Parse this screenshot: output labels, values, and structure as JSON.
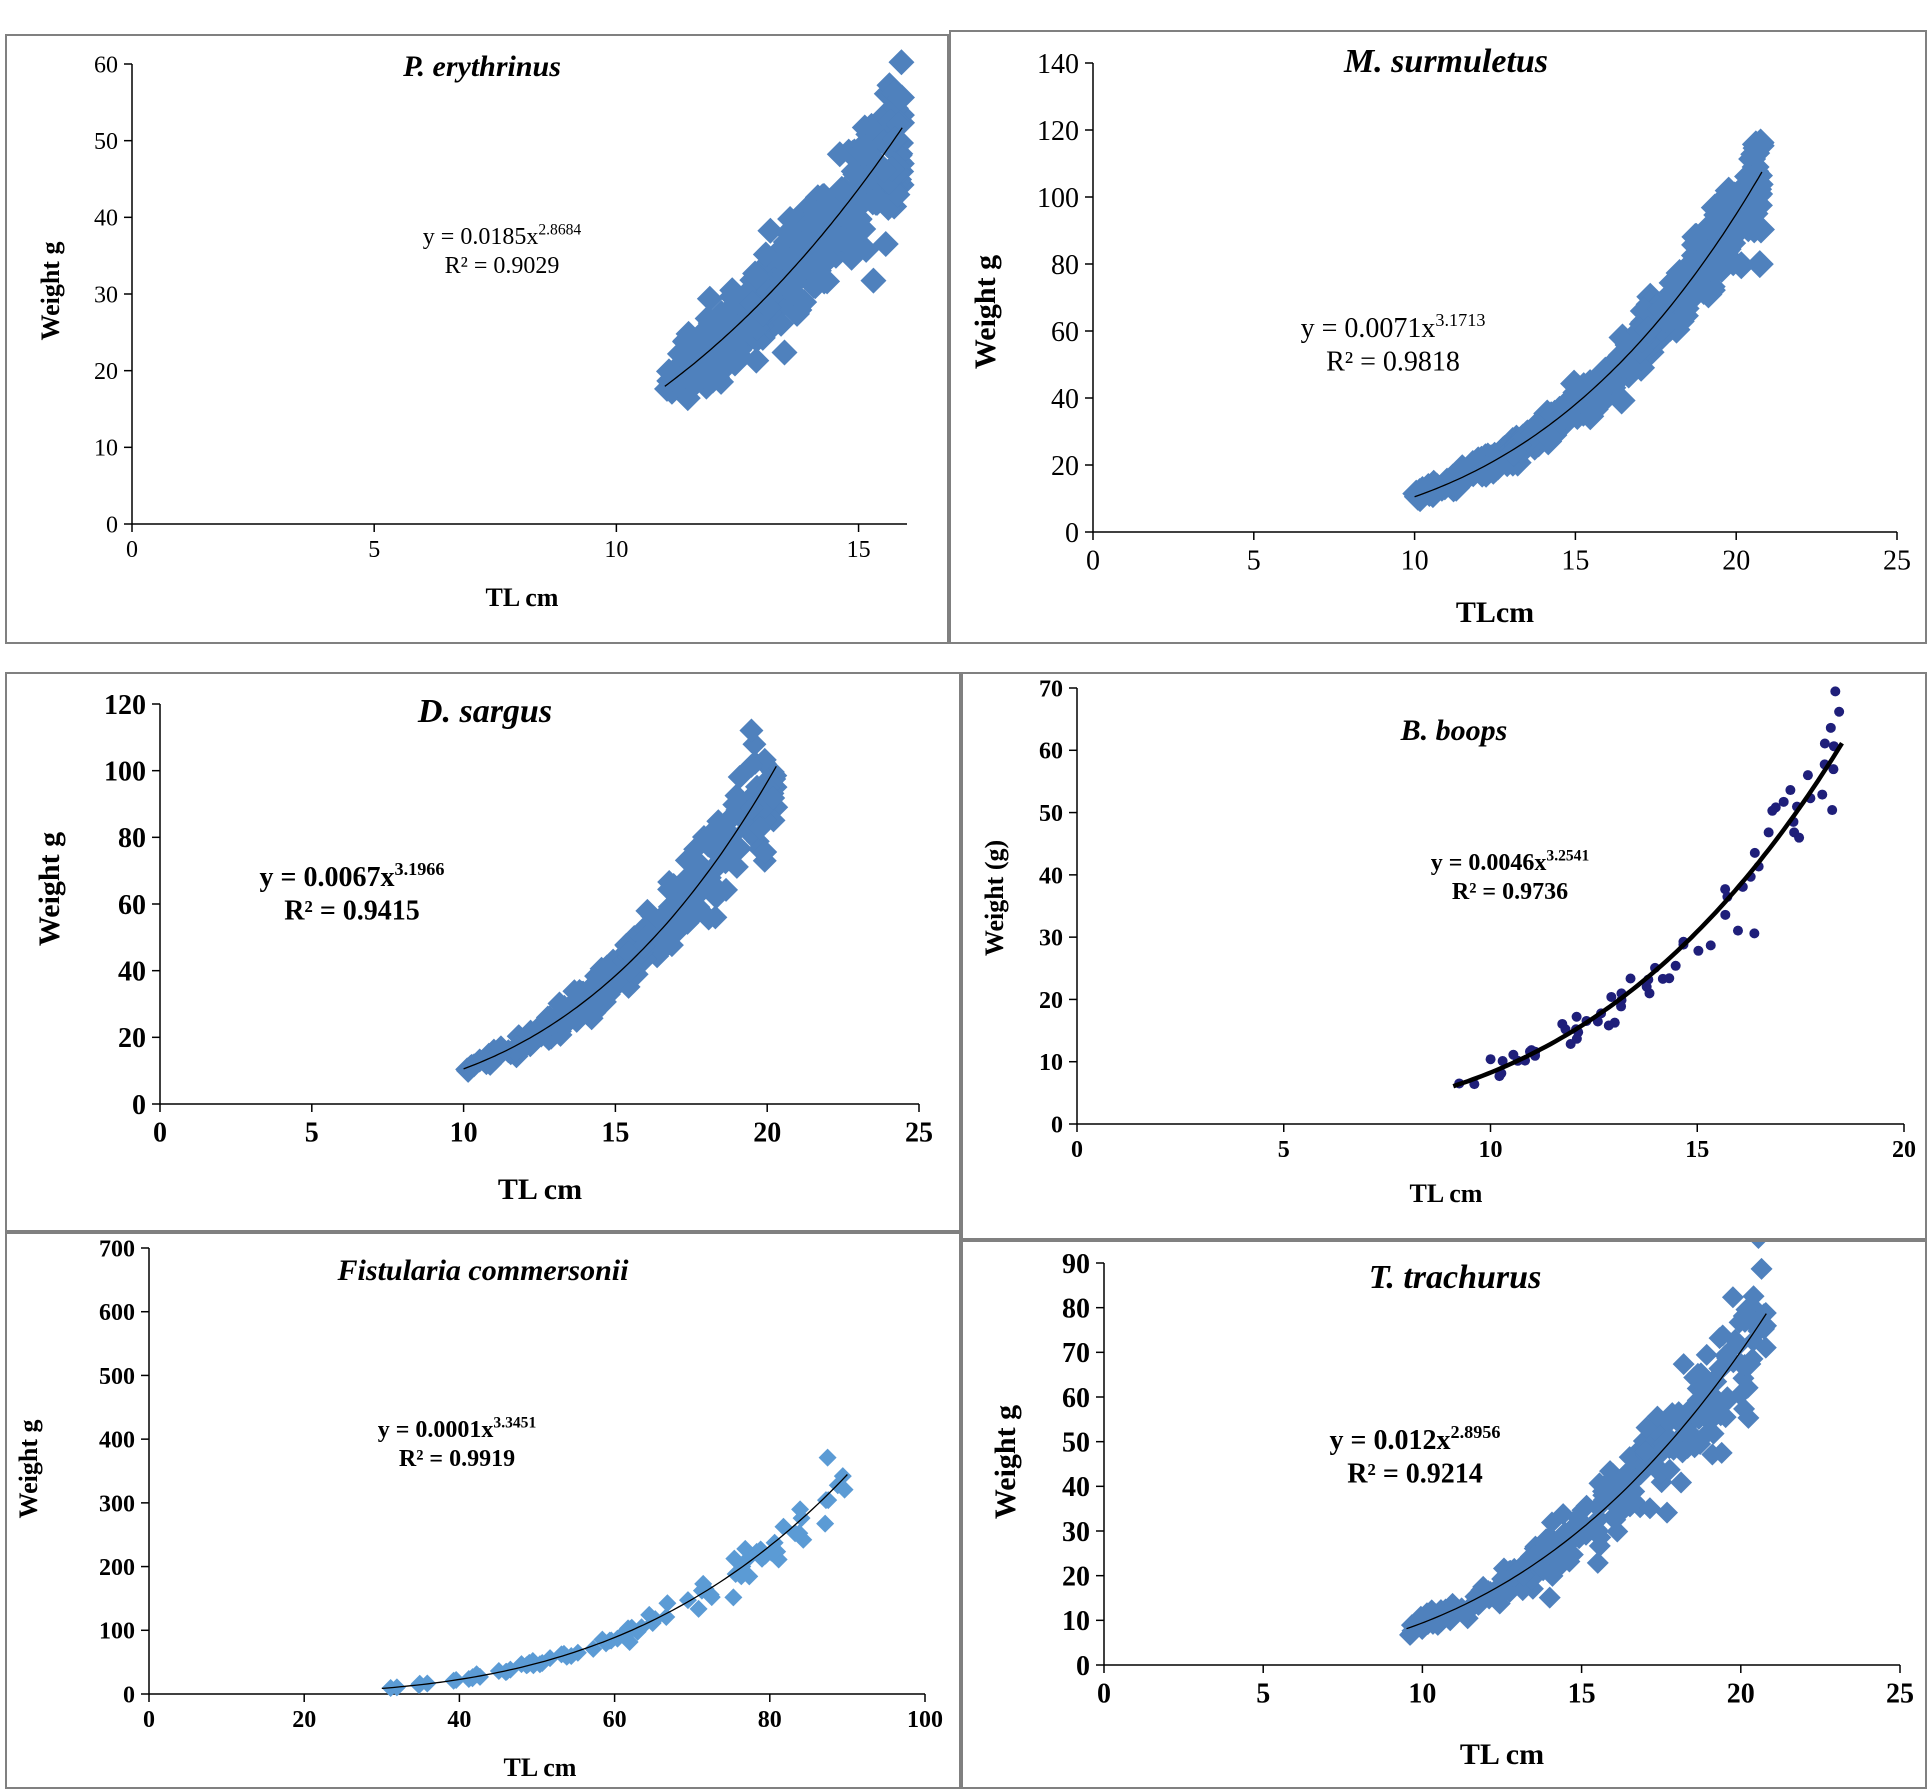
{
  "chart_data": [
    {
      "type": "scatter",
      "title": "P. erythrinus",
      "xlabel": "TL cm",
      "ylabel": "Weight g",
      "xlim": [
        0,
        16
      ],
      "ylim": [
        0,
        60
      ],
      "xticks": [
        0,
        5,
        10,
        15
      ],
      "yticks": [
        0,
        10,
        20,
        30,
        40,
        50,
        60
      ],
      "grid": false,
      "legend": "none",
      "marker": "diamond",
      "color": "#4f81bd",
      "x_range": [
        11,
        15.9
      ],
      "trendline": {
        "a": 0.0185,
        "b": 2.8684,
        "x_range": [
          11,
          15.9
        ]
      },
      "equation": "y = 0.0185x",
      "exponent": "2.8684",
      "r2_text": "R² = 0.9029",
      "n_points": 420,
      "scatter_spread": 0.09
    },
    {
      "type": "scatter",
      "title": "M. surmuletus",
      "xlabel": "TLcm",
      "ylabel": "Weight g",
      "xlim": [
        0,
        25
      ],
      "ylim": [
        0,
        140
      ],
      "xticks": [
        0,
        5,
        10,
        15,
        20,
        25
      ],
      "yticks": [
        0,
        20,
        40,
        60,
        80,
        100,
        120,
        140
      ],
      "grid": false,
      "legend": "none",
      "marker": "diamond",
      "color": "#4f81bd",
      "x_range": [
        10,
        20.8
      ],
      "trendline": {
        "a": 0.0071,
        "b": 3.1713,
        "x_range": [
          10,
          20.8
        ]
      },
      "equation": "y = 0.0071x",
      "exponent": "3.1713",
      "r2_text": "R² = 0.9818",
      "n_points": 500,
      "scatter_spread": 0.07
    },
    {
      "type": "scatter",
      "title": "D. sargus",
      "xlabel": "TL cm",
      "ylabel": "Weight g",
      "xlim": [
        0,
        25
      ],
      "ylim": [
        0,
        120
      ],
      "xticks": [
        0,
        5,
        10,
        15,
        20,
        25
      ],
      "yticks": [
        0,
        20,
        40,
        60,
        80,
        100,
        120
      ],
      "grid": false,
      "legend": "none",
      "marker": "diamond",
      "color": "#4f81bd",
      "x_range": [
        10,
        20.3
      ],
      "trendline": {
        "a": 0.0067,
        "b": 3.1966,
        "x_range": [
          10,
          20.3
        ]
      },
      "equation": "y = 0.0067x",
      "exponent": "3.1966",
      "r2_text": "R² = 0.9415",
      "n_points": 260,
      "scatter_spread": 0.1
    },
    {
      "type": "scatter",
      "title": "B. boops",
      "xlabel": "TL cm",
      "ylabel": "Weight (g)",
      "xlim": [
        0,
        20
      ],
      "ylim": [
        0,
        70
      ],
      "xticks": [
        0,
        5,
        10,
        15,
        20
      ],
      "yticks": [
        0,
        10,
        20,
        30,
        40,
        50,
        60,
        70
      ],
      "grid": false,
      "legend": "none",
      "marker": "circle",
      "color": "#1f1f7a",
      "x_range": [
        9.1,
        18.5
      ],
      "trendline": {
        "a": 0.0046,
        "b": 3.2541,
        "x_range": [
          9.1,
          18.5
        ]
      },
      "equation": "y = 0.0046x",
      "exponent": "3.2541",
      "r2_text": "R² = 0.9736",
      "n_points": 70,
      "scatter_spread": 0.1
    },
    {
      "type": "scatter",
      "title": "Fistularia commersonii",
      "xlabel": "TL cm",
      "ylabel": "Weight g",
      "xlim": [
        0,
        100
      ],
      "ylim": [
        0,
        700
      ],
      "xticks": [
        0,
        20,
        40,
        60,
        80,
        100
      ],
      "yticks": [
        0,
        100,
        200,
        300,
        400,
        500,
        600,
        700
      ],
      "grid": false,
      "legend": "none",
      "marker": "diamond",
      "color": "#5b9bd5",
      "x_range": [
        30,
        90
      ],
      "trendline": {
        "a": 0.0001,
        "b": 3.3451,
        "x_range": [
          30,
          90
        ]
      },
      "equation": "y = 0.0001x",
      "exponent": "3.3451",
      "r2_text": "R² = 0.9919",
      "n_points": 90,
      "scatter_spread": 0.06
    },
    {
      "type": "scatter",
      "title": "T. trachurus",
      "xlabel": "TL cm",
      "ylabel": "Weight g",
      "xlim": [
        0,
        25
      ],
      "ylim": [
        0,
        90
      ],
      "xticks": [
        0,
        5,
        10,
        15,
        20,
        25
      ],
      "yticks": [
        0,
        10,
        20,
        30,
        40,
        50,
        60,
        70,
        80,
        90
      ],
      "grid": false,
      "legend": "none",
      "marker": "diamond",
      "color": "#4f81bd",
      "x_range": [
        9.5,
        20.8
      ],
      "trendline": {
        "a": 0.012,
        "b": 2.8956,
        "x_range": [
          9.5,
          20.8
        ]
      },
      "equation": "y = 0.012x",
      "exponent": "2.8956",
      "r2_text": "R² = 0.9214",
      "n_points": 300,
      "scatter_spread": 0.11
    }
  ]
}
